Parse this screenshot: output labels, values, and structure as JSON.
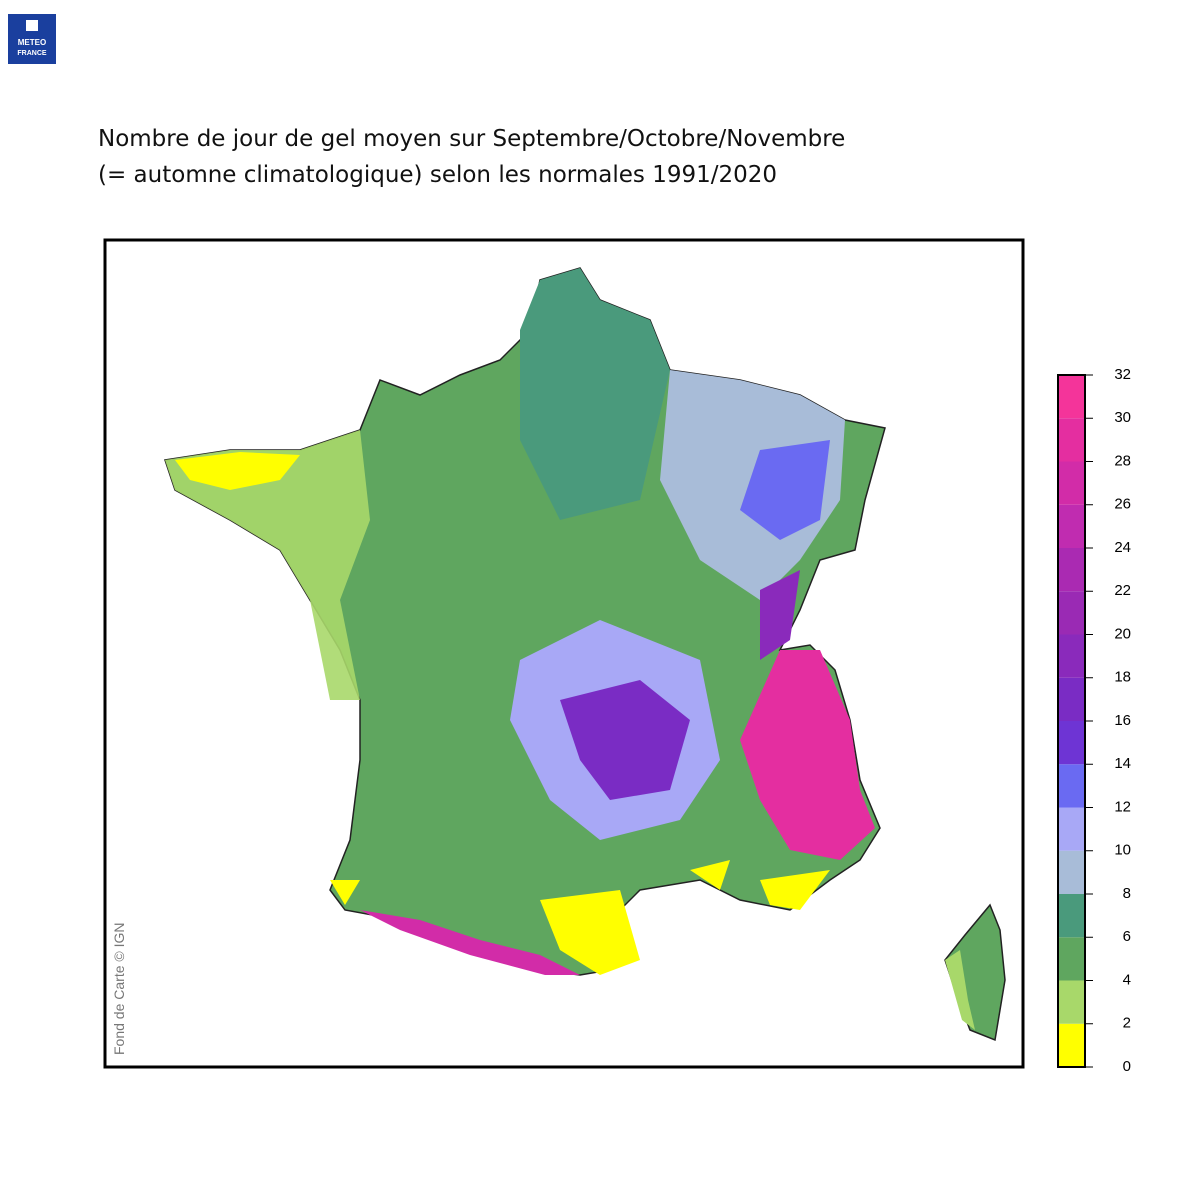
{
  "logo": {
    "line1": "METEO",
    "line2": "FRANCE"
  },
  "title": {
    "line1": "Nombre de jour de gel moyen sur Septembre/Octobre/Novembre",
    "line2": "(= automne climatologique) selon les normales 1991/2020"
  },
  "credit": "Fond de Carte © IGN",
  "legend": {
    "ticks": [
      0,
      2,
      4,
      6,
      8,
      10,
      12,
      14,
      16,
      18,
      20,
      22,
      24,
      26,
      28,
      30,
      32
    ],
    "colors": [
      "#ffff00",
      "#a8d86a",
      "#5fa65f",
      "#4a9a7c",
      "#a8bcd8",
      "#a8a8f6",
      "#6a6af2",
      "#6e34d4",
      "#7a2cc4",
      "#8a2abb",
      "#9a2ab4",
      "#aa2ab2",
      "#c02cb0",
      "#d22ca8",
      "#e42ea0",
      "#f4349a"
    ]
  }
}
